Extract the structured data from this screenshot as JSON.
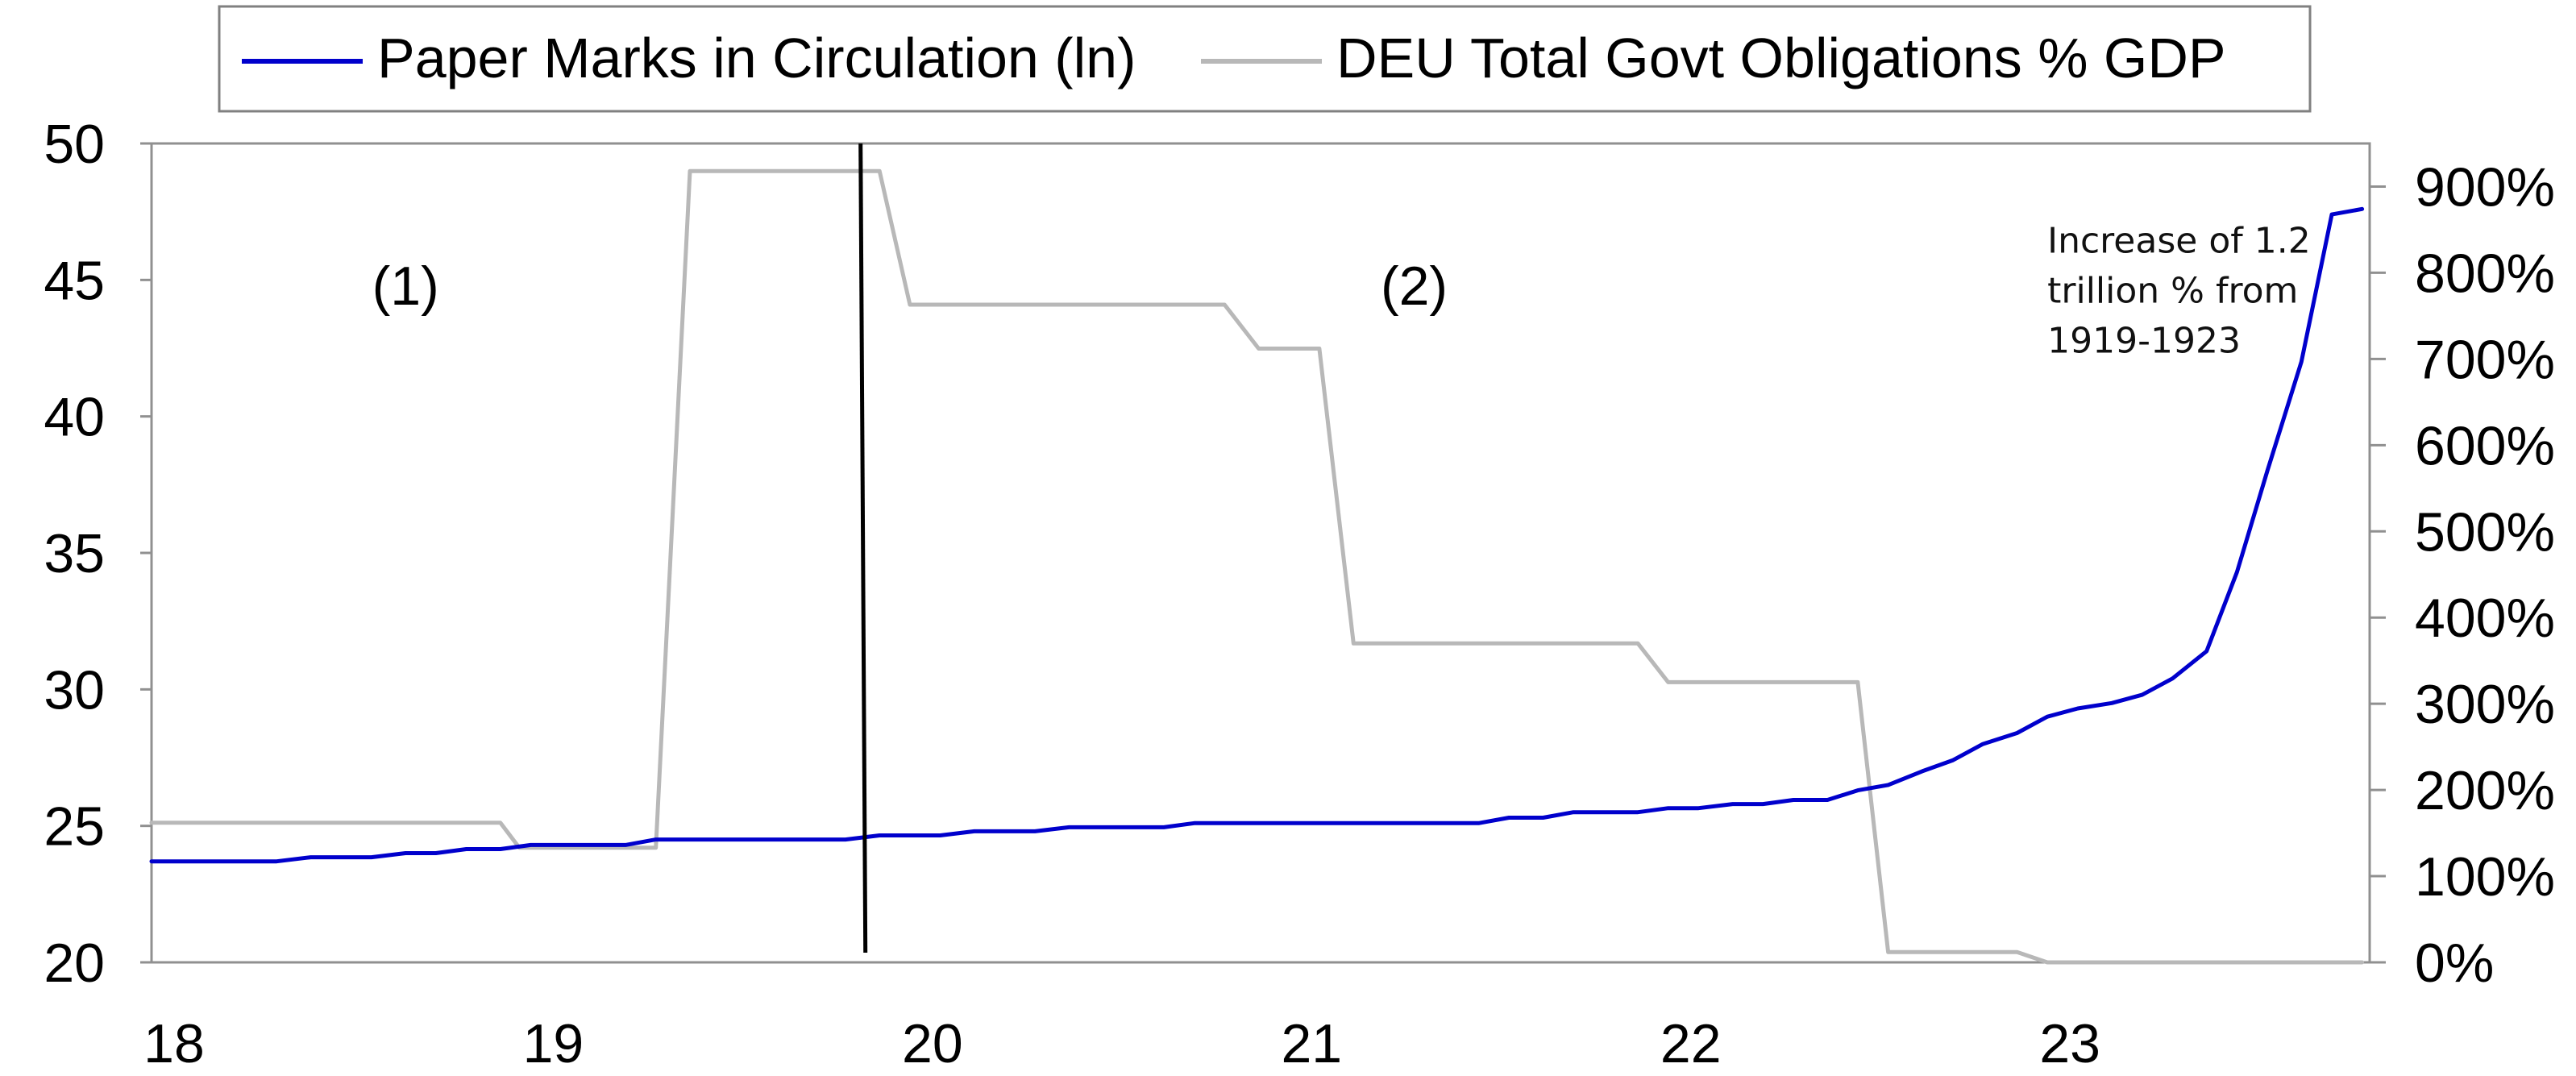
{
  "chart_data": {
    "type": "line",
    "title": "",
    "legend": {
      "placement": "top",
      "entries": [
        {
          "label": "Paper Marks in Circulation (ln)",
          "color": "#0000cc"
        },
        {
          "label": "DEU Total Govt Obligations % GDP",
          "color": "#b8b8b8"
        }
      ]
    },
    "x_axis": {
      "range": [
        1918,
        1923.85
      ],
      "ticks": [
        1918,
        1919,
        1920,
        1921,
        1922,
        1923
      ],
      "tick_labels": [
        "18",
        "19",
        "20",
        "21",
        "22",
        "23"
      ]
    },
    "y_left": {
      "range": [
        20,
        50
      ],
      "ticks": [
        20,
        25,
        30,
        35,
        40,
        45,
        50
      ],
      "tick_labels": [
        "20",
        "25",
        "30",
        "35",
        "40",
        "45",
        "50"
      ]
    },
    "y_right": {
      "range": [
        0,
        950
      ],
      "ticks": [
        0,
        100,
        200,
        300,
        400,
        500,
        600,
        700,
        800,
        900
      ],
      "tick_labels": [
        "0%",
        "100%",
        "200%",
        "300%",
        "400%",
        "500%",
        "600%",
        "700%",
        "800%",
        "900%"
      ]
    },
    "grid": false,
    "series": [
      {
        "name": "Paper Marks in Circulation (ln)",
        "axis": "left",
        "color": "#0000cc",
        "points": [
          [
            1918.0,
            23.7
          ],
          [
            1918.33,
            23.7
          ],
          [
            1918.42,
            23.85
          ],
          [
            1918.58,
            23.85
          ],
          [
            1918.67,
            24.0
          ],
          [
            1918.75,
            24.0
          ],
          [
            1918.83,
            24.15
          ],
          [
            1918.92,
            24.15
          ],
          [
            1919.0,
            24.3
          ],
          [
            1919.25,
            24.3
          ],
          [
            1919.33,
            24.5
          ],
          [
            1919.83,
            24.5
          ],
          [
            1919.92,
            24.65
          ],
          [
            1920.08,
            24.65
          ],
          [
            1920.17,
            24.8
          ],
          [
            1920.33,
            24.8
          ],
          [
            1920.42,
            24.95
          ],
          [
            1920.67,
            24.95
          ],
          [
            1920.75,
            25.1
          ],
          [
            1921.5,
            25.1
          ],
          [
            1921.58,
            25.3
          ],
          [
            1921.67,
            25.3
          ],
          [
            1921.75,
            25.5
          ],
          [
            1921.92,
            25.5
          ],
          [
            1922.0,
            25.65
          ],
          [
            1922.08,
            25.65
          ],
          [
            1922.17,
            25.8
          ],
          [
            1922.25,
            25.8
          ],
          [
            1922.33,
            25.95
          ],
          [
            1922.42,
            25.95
          ],
          [
            1922.5,
            26.3
          ],
          [
            1922.58,
            26.5
          ],
          [
            1922.67,
            27.0
          ],
          [
            1922.75,
            27.4
          ],
          [
            1922.83,
            28.0
          ],
          [
            1922.92,
            28.4
          ],
          [
            1923.0,
            29.0
          ],
          [
            1923.08,
            29.3
          ],
          [
            1923.17,
            29.5
          ],
          [
            1923.25,
            29.8
          ],
          [
            1923.33,
            30.4
          ],
          [
            1923.42,
            31.4
          ],
          [
            1923.5,
            34.3
          ],
          [
            1923.58,
            38.0
          ],
          [
            1923.67,
            42.0
          ],
          [
            1923.75,
            47.4
          ],
          [
            1923.83,
            47.6
          ]
        ]
      },
      {
        "name": "DEU Total Govt Obligations % GDP",
        "axis": "right",
        "color": "#b8b8b8",
        "points": [
          [
            1918.0,
            162
          ],
          [
            1918.92,
            162
          ],
          [
            1918.97,
            133
          ],
          [
            1919.33,
            133
          ],
          [
            1919.42,
            918
          ],
          [
            1919.92,
            918
          ],
          [
            1920.0,
            763
          ],
          [
            1920.83,
            763
          ],
          [
            1920.92,
            712
          ],
          [
            1921.08,
            712
          ],
          [
            1921.17,
            370
          ],
          [
            1921.92,
            370
          ],
          [
            1922.0,
            325
          ],
          [
            1922.5,
            325
          ],
          [
            1922.58,
            12
          ],
          [
            1922.92,
            12
          ],
          [
            1923.0,
            0
          ],
          [
            1923.83,
            0
          ]
        ]
      }
    ],
    "vertical_marker": {
      "x": 1919.87,
      "color": "#000000"
    },
    "annotations": [
      {
        "id": "region1",
        "text": "(1)",
        "x": 1918.67,
        "y": 44.8
      },
      {
        "id": "region2",
        "text": "(2)",
        "x": 1921.33,
        "y": 44.8
      },
      {
        "id": "note",
        "lines": [
          "Increase of 1.2",
          "trillion % from",
          "1919-1923"
        ],
        "x": 1923.0,
        "y": 46.0
      }
    ]
  }
}
